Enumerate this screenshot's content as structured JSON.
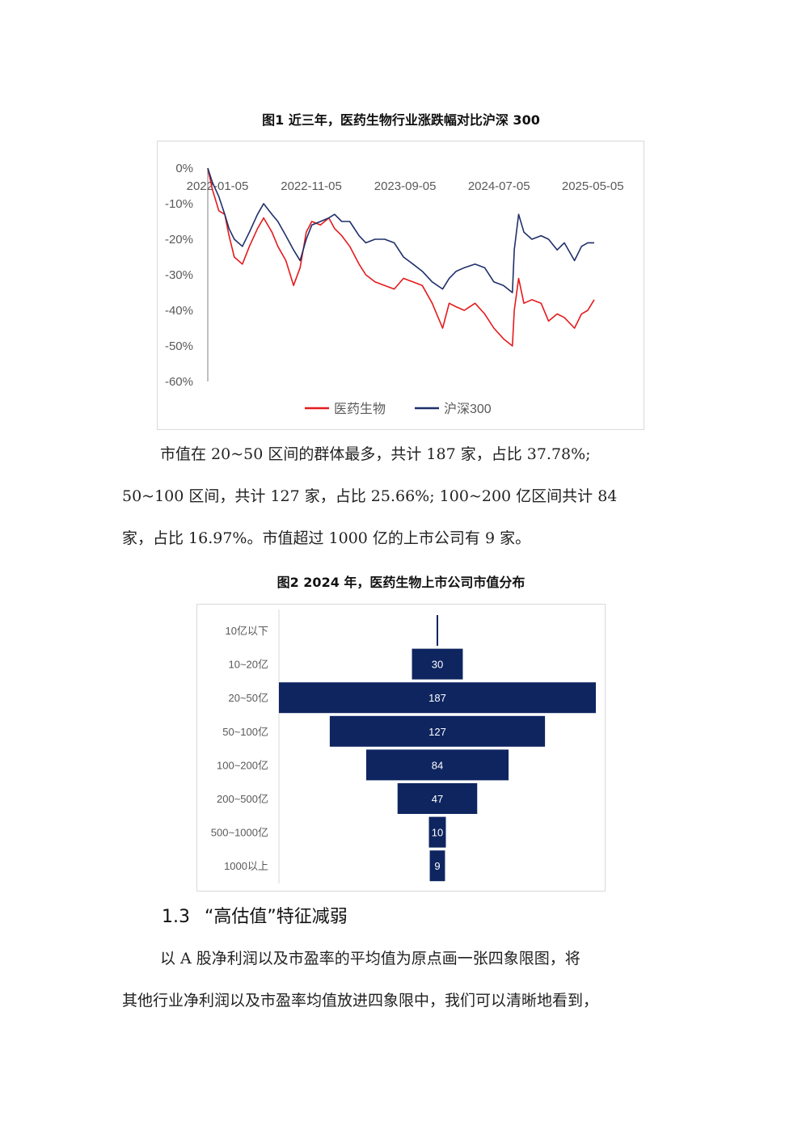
{
  "figure1": {
    "title": "图1 近三年，医药生物行业涨跌幅对比沪深 300",
    "chart_data": {
      "type": "line",
      "x_ticks": [
        "2022-01-05",
        "2022-11-05",
        "2023-09-05",
        "2024-07-05",
        "2025-05-05"
      ],
      "y_ticks": [
        "0%",
        "-10%",
        "-20%",
        "-30%",
        "-40%",
        "-50%",
        "-60%"
      ],
      "ylim": [
        -60,
        0
      ],
      "xlim": [
        "2022-01-05",
        "2025-06-10"
      ],
      "legend": "bottom",
      "series": [
        {
          "name": "医药生物",
          "color": "#e41a1c",
          "x": [
            "2022-01-05",
            "2022-01-20",
            "2022-02-10",
            "2022-03-01",
            "2022-03-15",
            "2022-04-01",
            "2022-04-27",
            "2022-05-20",
            "2022-06-15",
            "2022-07-05",
            "2022-08-01",
            "2022-08-20",
            "2022-09-15",
            "2022-10-10",
            "2022-10-31",
            "2022-11-20",
            "2022-12-08",
            "2023-01-05",
            "2023-02-01",
            "2023-02-20",
            "2023-03-15",
            "2023-04-10",
            "2023-05-10",
            "2023-06-01",
            "2023-07-01",
            "2023-08-01",
            "2023-09-01",
            "2023-10-01",
            "2023-11-01",
            "2023-12-01",
            "2024-01-02",
            "2024-02-05",
            "2024-02-26",
            "2024-03-20",
            "2024-04-15",
            "2024-05-20",
            "2024-06-20",
            "2024-07-20",
            "2024-08-20",
            "2024-09-18",
            "2024-09-24",
            "2024-10-08",
            "2024-10-25",
            "2024-11-20",
            "2024-12-20",
            "2025-01-13",
            "2025-02-10",
            "2025-03-05",
            "2025-04-07",
            "2025-04-30",
            "2025-05-20",
            "2025-06-10"
          ],
          "values": [
            0,
            -6,
            -12,
            -13,
            -19,
            -25,
            -27,
            -22,
            -17,
            -14,
            -18,
            -22,
            -26,
            -33,
            -28,
            -18,
            -15,
            -16,
            -14,
            -17,
            -19,
            -22,
            -27,
            -30,
            -32,
            -33,
            -34,
            -31,
            -32,
            -33,
            -38,
            -45,
            -38,
            -39,
            -40,
            -38,
            -41,
            -45,
            -48,
            -50,
            -40,
            -31,
            -38,
            -37,
            -38,
            -43,
            -41,
            -42,
            -45,
            -41,
            -40,
            -37
          ]
        },
        {
          "name": "沪深300",
          "color": "#1f2f6b",
          "x": [
            "2022-01-05",
            "2022-01-20",
            "2022-02-10",
            "2022-03-01",
            "2022-03-15",
            "2022-04-01",
            "2022-04-27",
            "2022-05-20",
            "2022-06-15",
            "2022-07-05",
            "2022-08-01",
            "2022-08-20",
            "2022-09-15",
            "2022-10-10",
            "2022-10-31",
            "2022-11-20",
            "2022-12-08",
            "2023-01-05",
            "2023-02-01",
            "2023-02-20",
            "2023-03-15",
            "2023-04-10",
            "2023-05-10",
            "2023-06-01",
            "2023-07-01",
            "2023-08-01",
            "2023-09-01",
            "2023-10-01",
            "2023-11-01",
            "2023-12-01",
            "2024-01-02",
            "2024-02-05",
            "2024-02-26",
            "2024-03-20",
            "2024-04-15",
            "2024-05-20",
            "2024-06-20",
            "2024-07-20",
            "2024-08-20",
            "2024-09-18",
            "2024-09-24",
            "2024-10-08",
            "2024-10-25",
            "2024-11-20",
            "2024-12-20",
            "2025-01-13",
            "2025-02-10",
            "2025-03-05",
            "2025-04-07",
            "2025-04-30",
            "2025-05-20",
            "2025-06-10"
          ],
          "values": [
            0,
            -4,
            -8,
            -13,
            -17,
            -20,
            -22,
            -18,
            -13,
            -10,
            -13,
            -15,
            -19,
            -23,
            -26,
            -20,
            -16,
            -15,
            -14,
            -13,
            -15,
            -15,
            -19,
            -21,
            -20,
            -20,
            -21,
            -25,
            -27,
            -29,
            -32,
            -34,
            -31,
            -29,
            -28,
            -27,
            -28,
            -32,
            -33,
            -35,
            -23,
            -13,
            -18,
            -20,
            -19,
            -20,
            -23,
            -21,
            -26,
            -22,
            -21,
            -21
          ]
        }
      ]
    }
  },
  "paragraph1": {
    "lines": [
      "市值在  20~50  区间的群体最多，共计  187  家，占比  37.78%;",
      "50~100 区间，共计 127 家，占比 25.66%;  100~200 亿区间共计 84",
      "家，占比 16.97%。市值超过 1000 亿的上市公司有 9 家。"
    ]
  },
  "figure2": {
    "title": "图2 2024 年，医药生物上市公司市值分布",
    "chart_data": {
      "type": "bar",
      "orientation": "horizontal-funnel",
      "bar_color": "#0e2560",
      "categories": [
        "10亿以下",
        "10~20亿",
        "20~50亿",
        "50~100亿",
        "100~200亿",
        "200~500亿",
        "500~1000亿",
        "1000以上"
      ],
      "values": [
        1,
        30,
        187,
        127,
        84,
        47,
        10,
        9
      ],
      "data_labels": [
        "",
        "30",
        "187",
        "127",
        "84",
        "47",
        "10",
        "9"
      ]
    }
  },
  "section": {
    "number": "1.3",
    "title": "“高估值”特征减弱"
  },
  "paragraph2": {
    "lines": [
      "以  A  股净利润以及市盈率的平均值为原点画一张四象限图，将",
      "其他行业净利润以及市盈率均值放进四象限中，我们可以清晰地看到，"
    ]
  }
}
